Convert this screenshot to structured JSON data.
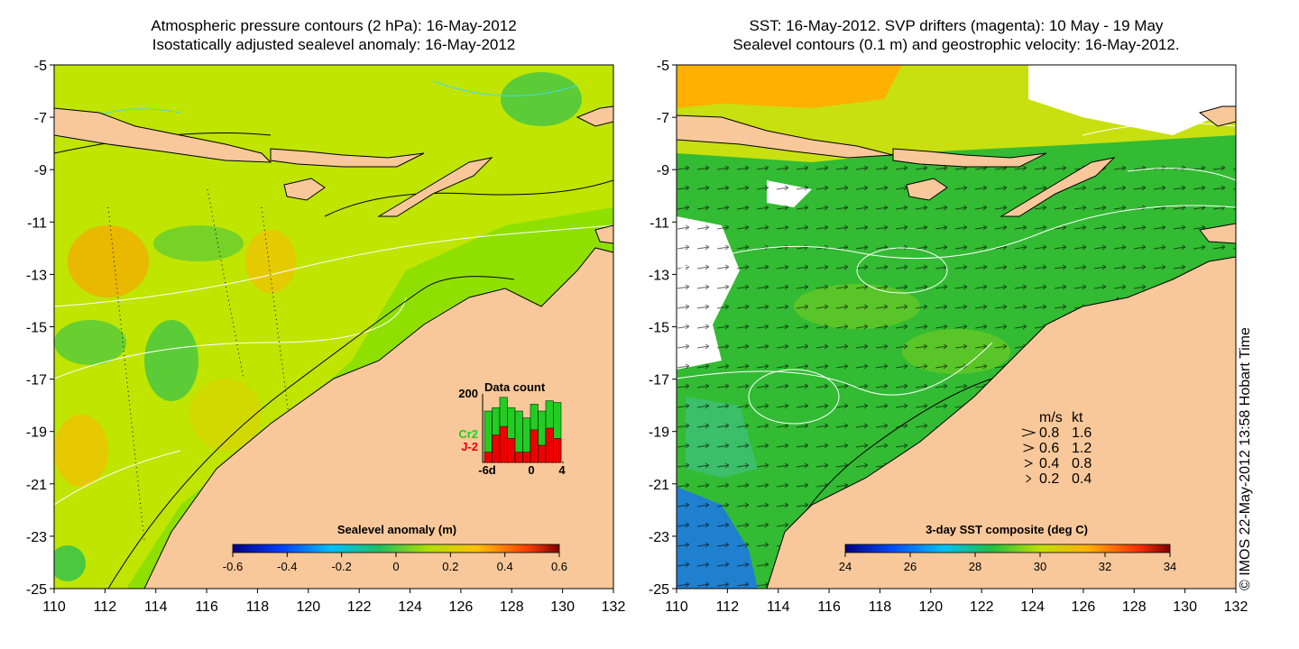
{
  "left_panel": {
    "title_line1": "Atmospheric pressure contours (2 hPa): 16-May-2012",
    "title_line2": "Isostatically adjusted sealevel anomaly: 16-May-2012",
    "colorbar_label": "Sealevel anomaly (m)",
    "colorbar_ticks": [
      "-0.6",
      "-0.4",
      "-0.2",
      "0",
      "0.2",
      "0.4",
      "0.6"
    ],
    "data_count": {
      "title": "Data count",
      "ymax_label": "200",
      "x_labels": [
        "-6d",
        "0",
        "4"
      ],
      "series": [
        {
          "name": "Cr2",
          "color": "#22cc22",
          "values": [
            150,
            160,
            190,
            160,
            150,
            130,
            170,
            150,
            180,
            175
          ]
        },
        {
          "name": "J-2",
          "color": "#ee0000",
          "values": [
            30,
            80,
            105,
            70,
            30,
            30,
            95,
            50,
            100,
            70
          ]
        }
      ],
      "ylim": [
        0,
        200
      ]
    }
  },
  "right_panel": {
    "title_line1": "SST: 16-May-2012. SVP drifters (magenta): 10 May - 19 May",
    "title_line2": "Sealevel contours (0.1 m) and geostrophic velocity: 16-May-2012.",
    "colorbar_label": "3-day SST composite (deg C)",
    "colorbar_ticks": [
      "24",
      "26",
      "28",
      "30",
      "32",
      "34"
    ],
    "velocity_legend": {
      "header_ms": "m/s",
      "header_kt": "kt",
      "rows": [
        {
          "ms": "0.8",
          "kt": "1.6"
        },
        {
          "ms": "0.6",
          "kt": "1.2"
        },
        {
          "ms": "0.4",
          "kt": "0.8"
        },
        {
          "ms": "0.2",
          "kt": "0.4"
        }
      ]
    }
  },
  "axes": {
    "x_ticks": [
      "110",
      "112",
      "114",
      "116",
      "118",
      "120",
      "122",
      "124",
      "126",
      "128",
      "130",
      "132"
    ],
    "y_ticks": [
      "-5",
      "-7",
      "-9",
      "-11",
      "-13",
      "-15",
      "-17",
      "-19",
      "-21",
      "-23",
      "-25"
    ]
  },
  "credit": "© IMOS 22-May-2012 13:58 Hobart Time",
  "colors": {
    "land": "#f8c89a",
    "sla_background": "#8fe000",
    "sst_background": "#33bb33",
    "cloud": "#ffffff"
  }
}
